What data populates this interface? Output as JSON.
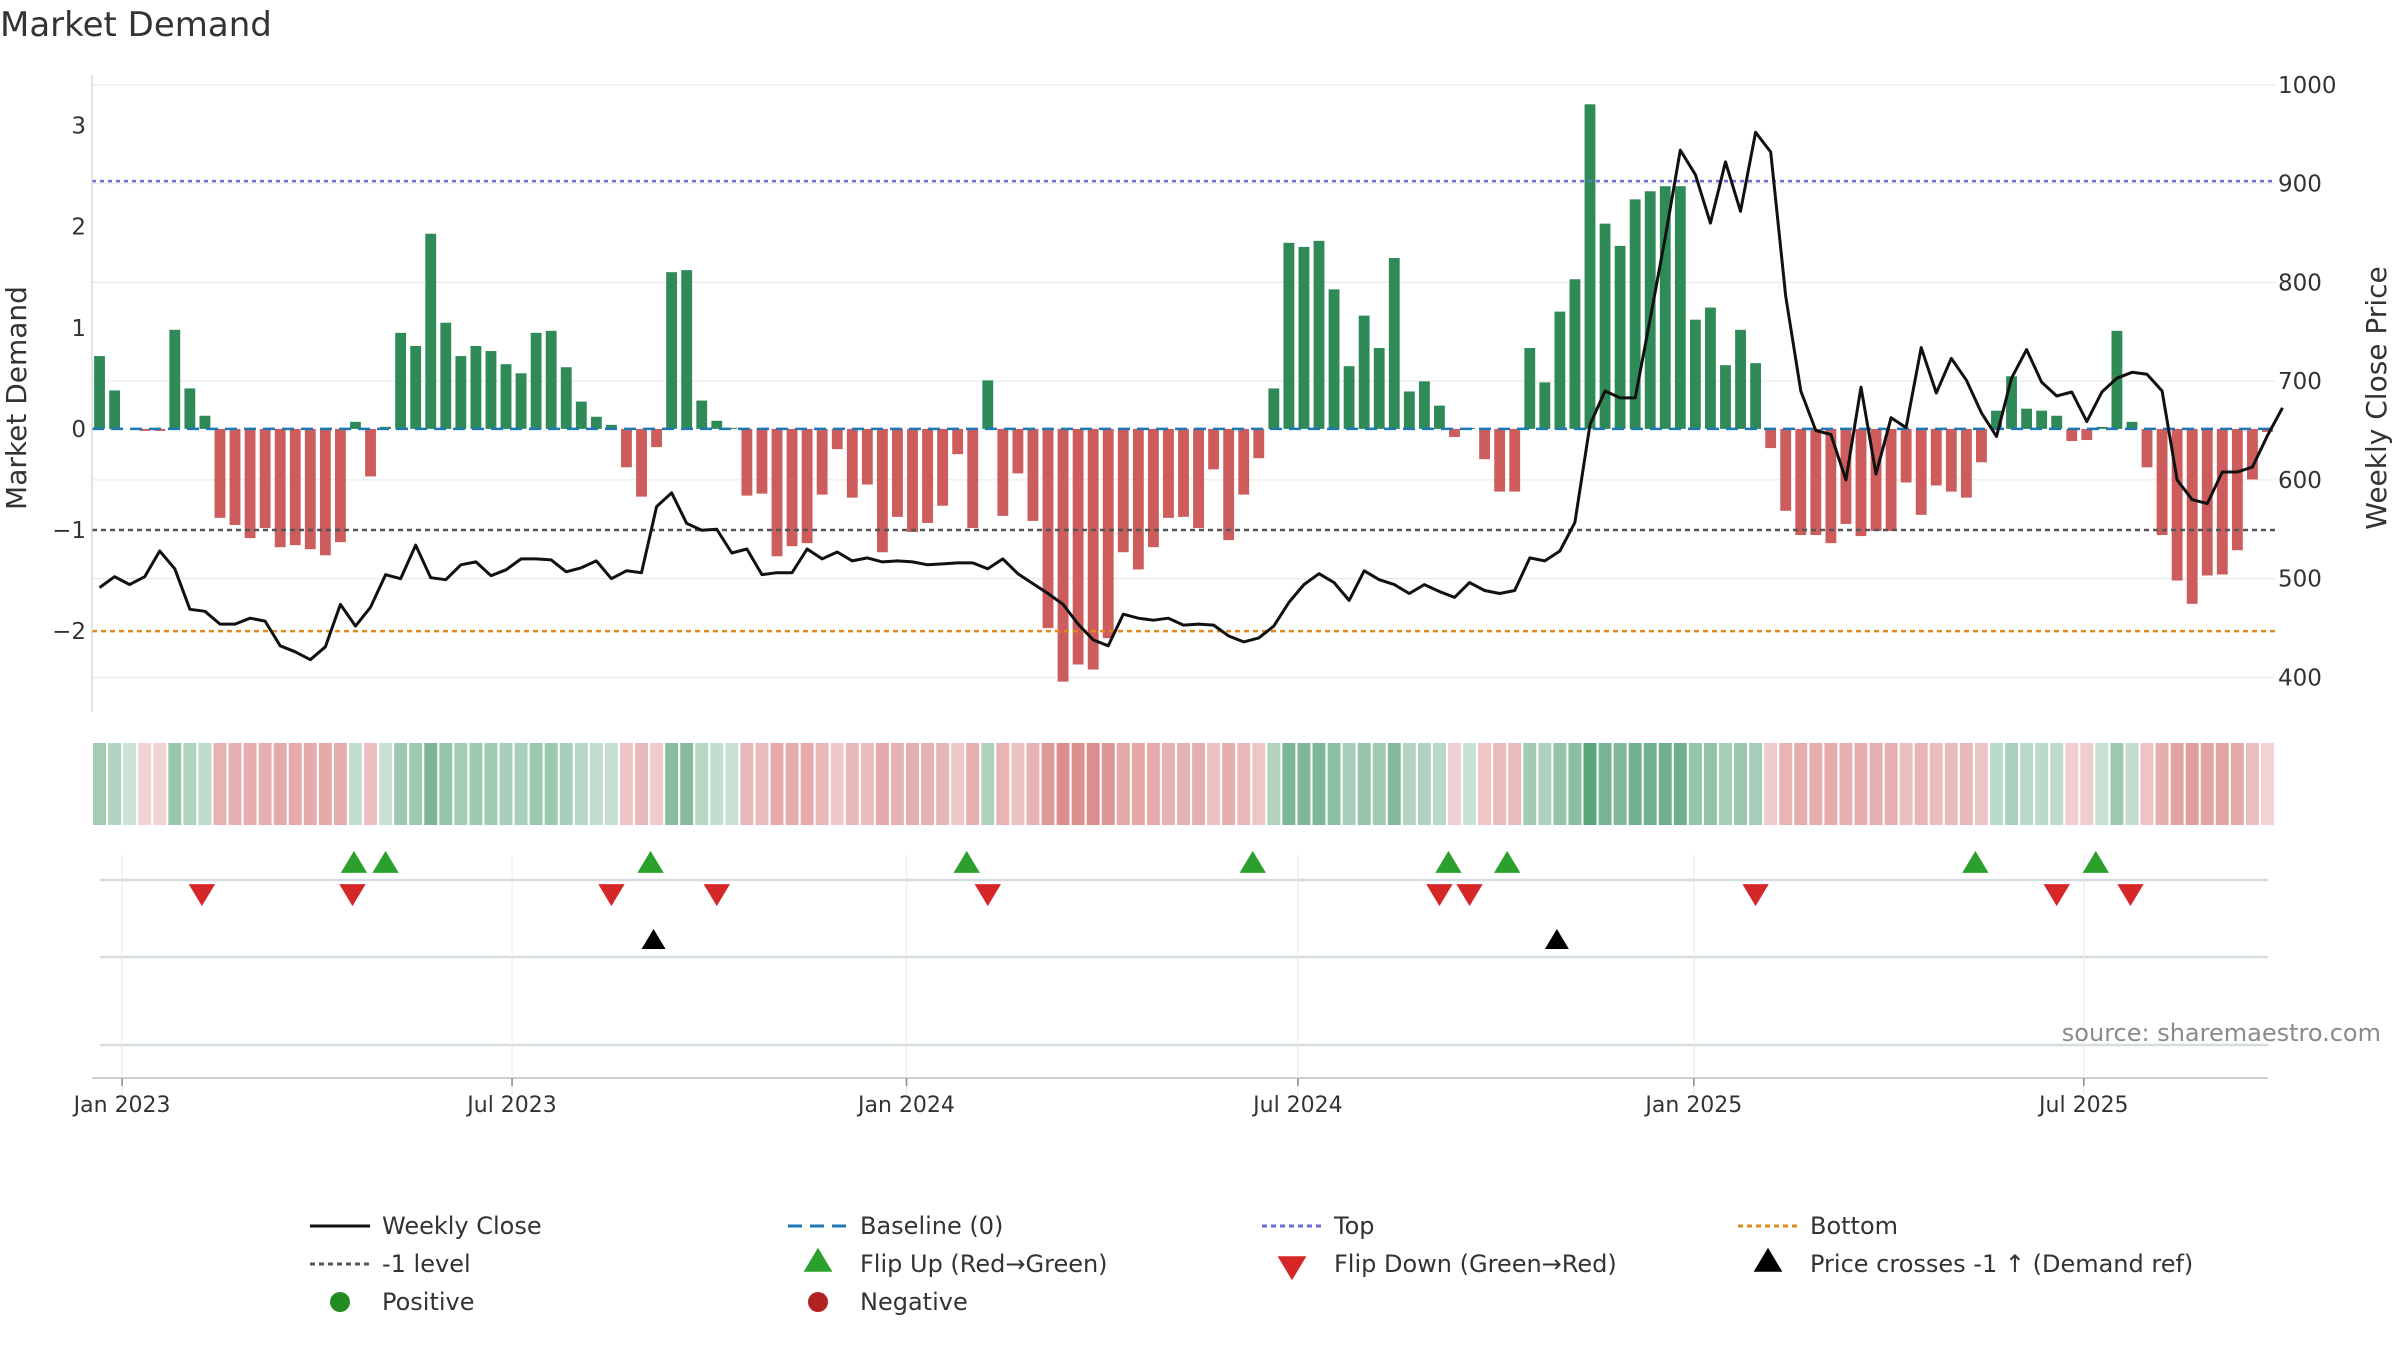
{
  "chart_data": {
    "type": "bar",
    "title": "Market Demand",
    "ylabel": "Market Demand",
    "y2label": "Weekly Close Price",
    "ylim": [
      -2.8,
      3.5
    ],
    "y2lim": [
      365,
      1010
    ],
    "yticks": [
      3,
      2,
      1,
      0,
      -1,
      -2
    ],
    "ytick_labels": [
      "3",
      "2",
      "1",
      "0",
      "−1",
      "−2"
    ],
    "y2ticks": [
      1000,
      900,
      800,
      700,
      600,
      500,
      400
    ],
    "y2tick_labels": [
      "1000",
      "900",
      "800",
      "700",
      "600",
      "500",
      "400"
    ],
    "x_start": "Dec 19 2022",
    "x_interval": "weekly",
    "date_ticks": [
      {
        "label": "Jan 2023",
        "week": 2
      },
      {
        "label": "Jul 2023",
        "week": 27.9
      },
      {
        "label": "Jan 2024",
        "week": 54.1
      },
      {
        "label": "Jul 2024",
        "week": 80.1
      },
      {
        "label": "Jan 2025",
        "week": 106.4
      },
      {
        "label": "Jul 2025",
        "week": 132.3
      }
    ],
    "demand": [
      0.72,
      0.38,
      0,
      -0.02,
      -0.02,
      0.98,
      0.4,
      0.13,
      -0.88,
      -0.95,
      -1.08,
      -0.98,
      -1.17,
      -1.15,
      -1.19,
      -1.25,
      -1.12,
      0.07,
      -0.47,
      0.02,
      0.95,
      0.82,
      1.93,
      1.05,
      0.72,
      0.82,
      0.77,
      0.64,
      0.55,
      0.95,
      0.97,
      0.61,
      0.27,
      0.12,
      0.04,
      -0.38,
      -0.67,
      -0.18,
      1.55,
      1.57,
      0.28,
      0.08,
      0.01,
      -0.66,
      -0.64,
      -1.26,
      -1.16,
      -1.13,
      -0.65,
      -0.2,
      -0.68,
      -0.55,
      -1.22,
      -0.87,
      -1.02,
      -0.93,
      -0.76,
      -0.25,
      -0.98,
      0.48,
      -0.86,
      -0.44,
      -0.91,
      -1.97,
      -2.5,
      -2.33,
      -2.38,
      -2.07,
      -1.22,
      -1.39,
      -1.17,
      -0.88,
      -0.87,
      -0.98,
      -0.4,
      -1.1,
      -0.65,
      -0.29,
      0.4,
      1.84,
      1.8,
      1.86,
      1.38,
      0.62,
      1.12,
      0.8,
      1.69,
      0.37,
      0.47,
      0.23,
      -0.08,
      0.01,
      -0.3,
      -0.62,
      -0.62,
      0.8,
      0.46,
      1.16,
      1.48,
      3.21,
      2.03,
      1.81,
      2.27,
      2.35,
      2.4,
      2.4,
      1.08,
      1.2,
      0.63,
      0.98,
      0.65,
      -0.19,
      -0.81,
      -1.05,
      -1.05,
      -1.13,
      -0.94,
      -1.06,
      -1.01,
      -1.01,
      -0.53,
      -0.85,
      -0.56,
      -0.62,
      -0.68,
      -0.33,
      0.18,
      0.52,
      0.2,
      0.18,
      0.13,
      -0.12,
      -0.11,
      0.02,
      0.97,
      0.07,
      -0.38,
      -1.05,
      -1.5,
      -1.73,
      -1.45,
      -1.44,
      -1.2,
      -0.5,
      -0.03
    ],
    "price": [
      491,
      502,
      494,
      502,
      528,
      510,
      469,
      467,
      454,
      454,
      460,
      457,
      432,
      426,
      418,
      431,
      474,
      452,
      471,
      504,
      500,
      534,
      501,
      499,
      514,
      517,
      503,
      509,
      520,
      520,
      519,
      507,
      511,
      518,
      500,
      508,
      506,
      573,
      587,
      556,
      549,
      550,
      526,
      530,
      504,
      506,
      506,
      530,
      520,
      527,
      518,
      521,
      517,
      518,
      517,
      514,
      515,
      516,
      516,
      510,
      520,
      505,
      495,
      485,
      474,
      454,
      438,
      432,
      464,
      460,
      458,
      460,
      453,
      454,
      453,
      442,
      436,
      440,
      452,
      476,
      494,
      505,
      496,
      478,
      508,
      499,
      494,
      485,
      494,
      487,
      481,
      496,
      488,
      485,
      488,
      521,
      518,
      528,
      557,
      656,
      690,
      683,
      683,
      763,
      846,
      934,
      909,
      860,
      922,
      872,
      952,
      932,
      786,
      690,
      650,
      646,
      600,
      694,
      606,
      663,
      653,
      734,
      688,
      723,
      701,
      668,
      644,
      703,
      732,
      699,
      685,
      689,
      659,
      689,
      703,
      709,
      707,
      690,
      600,
      580,
      576,
      608,
      608,
      613,
      645,
      673
    ]
  },
  "panels": {
    "flip_up": [
      17.4,
      19.5,
      37.1,
      58.1,
      77.1,
      90.1,
      94.0,
      125.1,
      133.1
    ],
    "flip_down": [
      7.3,
      17.3,
      34.5,
      41.5,
      59.5,
      89.5,
      91.5,
      110.5,
      130.5,
      135.4
    ],
    "price_cross": [
      37.3,
      97.3
    ]
  },
  "reference_lines": {
    "top": 2.45,
    "minus_one": -1,
    "bottom": -2
  },
  "source_text": "source: sharemaestro.com",
  "legend": [
    {
      "label": "Weekly Close",
      "marker": "line"
    },
    {
      "label": "Baseline (0)",
      "marker": "dashed-line"
    },
    {
      "label": "Top",
      "marker": "dotted-line"
    },
    {
      "label": "Bottom",
      "marker": "dotted-line"
    },
    {
      "label": "-1 level",
      "marker": "dotted-line"
    },
    {
      "label": "Flip Up (Red→Green)",
      "marker": "triangle-up"
    },
    {
      "label": "Flip Down (Green→Red)",
      "marker": "triangle-down"
    },
    {
      "label": "Price crosses -1 ↑ (Demand ref)",
      "marker": "triangle-up"
    },
    {
      "label": "Positive",
      "marker": "circle"
    },
    {
      "label": "Negative",
      "marker": "circle"
    }
  ],
  "colors": {
    "positive": "#2e8b57",
    "negative": "#cd5c5c",
    "price_line": "#111111",
    "baseline": "#1f77b4",
    "top": "#6b6bd6",
    "minus_one": "#555555",
    "bottom": "#e08a1e",
    "flip_up": "#2ca02c",
    "flip_down": "#d62728",
    "cross": "#000000",
    "positive_dot": "#228b22",
    "negative_dot": "#b22222",
    "grid": "#e6e6e6",
    "text": "#333333"
  }
}
